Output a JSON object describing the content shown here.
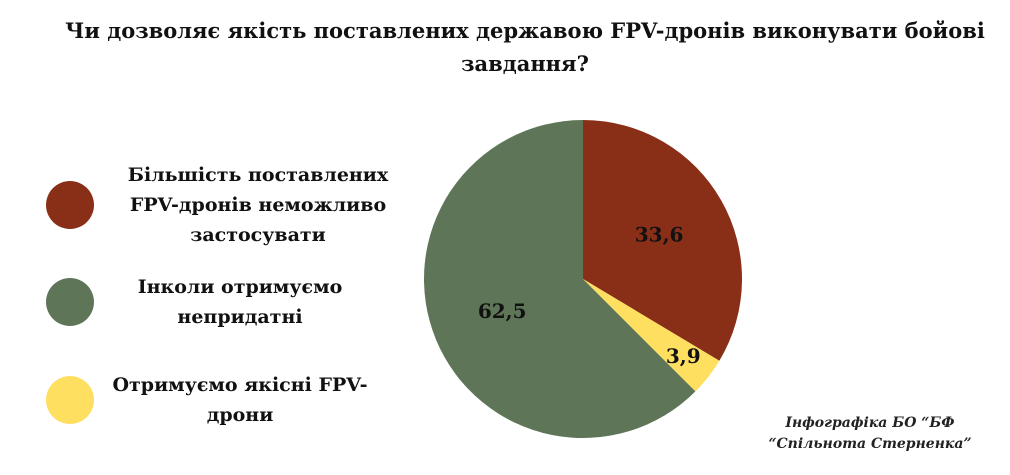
{
  "chart_data": {
    "type": "pie",
    "title": "Чи дозволяє якість поставлених державою FPV-дронів виконувати бойові завдання?",
    "categories": [
      "Більшість поставлених FPV-дронів неможливо застосувати",
      "Отримуємо якісні FPV-дрони",
      "Інколи отримуємо непридатні"
    ],
    "values": [
      33.6,
      3.9,
      62.5
    ],
    "value_labels": [
      "33,6",
      "3,9",
      "62,5"
    ],
    "colors": [
      "#8a2f17",
      "#fedf60",
      "#5e7657"
    ],
    "annotation": "Інфографіка БО “БФ “Спільнота Стерненка”"
  }
}
